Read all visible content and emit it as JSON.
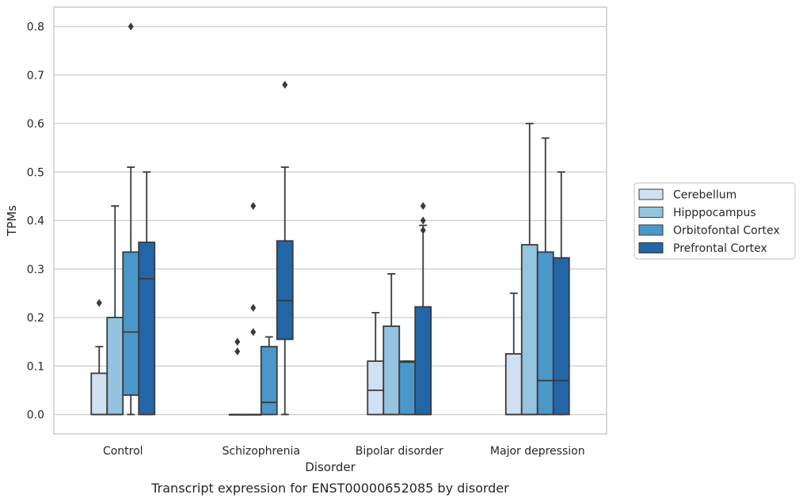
{
  "chart_data": {
    "type": "boxplot",
    "caption": "Transcript expression for ENST00000652085 by disorder",
    "xlabel": "Disorder",
    "ylabel": "TPMs",
    "ylim": [
      -0.04,
      0.84
    ],
    "yticks": [
      "0.0",
      "0.1",
      "0.2",
      "0.3",
      "0.4",
      "0.5",
      "0.6",
      "0.7",
      "0.8"
    ],
    "ytick_values": [
      0,
      0.1,
      0.2,
      0.3,
      0.4,
      0.5,
      0.6,
      0.7,
      0.8
    ],
    "grid": "horizontal",
    "legend_position": "right",
    "categories": [
      "Control",
      "Schizophrenia",
      "Bipolar disorder",
      "Major depression"
    ],
    "series": [
      {
        "name": "Cerebellum",
        "color": "#d0e1f2",
        "boxes": [
          {
            "whisker_low": 0,
            "q1": 0,
            "median": 0,
            "q3": 0.085,
            "whisker_high": 0.14,
            "outliers": [
              0.23
            ]
          },
          {
            "whisker_low": 0,
            "q1": 0,
            "median": 0,
            "q3": 0,
            "whisker_high": 0,
            "outliers": [
              0.13,
              0.15
            ]
          },
          {
            "whisker_low": 0,
            "q1": 0,
            "median": 0.05,
            "q3": 0.11,
            "whisker_high": 0.21,
            "outliers": []
          },
          {
            "whisker_low": 0,
            "q1": 0,
            "median": 0,
            "q3": 0.125,
            "whisker_high": 0.25,
            "outliers": []
          }
        ]
      },
      {
        "name": "Hipppocampus",
        "color": "#94c4df",
        "boxes": [
          {
            "whisker_low": 0,
            "q1": 0,
            "median": 0,
            "q3": 0.2,
            "whisker_high": 0.43,
            "outliers": []
          },
          {
            "whisker_low": 0,
            "q1": 0,
            "median": 0,
            "q3": 0,
            "whisker_high": 0,
            "outliers": [
              0.17,
              0.22,
              0.43
            ]
          },
          {
            "whisker_low": 0,
            "q1": 0,
            "median": 0,
            "q3": 0.182,
            "whisker_high": 0.29,
            "outliers": []
          },
          {
            "whisker_low": 0,
            "q1": 0,
            "median": 0,
            "q3": 0.35,
            "whisker_high": 0.6,
            "outliers": []
          }
        ]
      },
      {
        "name": "Orbitofontal Cortex",
        "color": "#4a98c9",
        "boxes": [
          {
            "whisker_low": 0,
            "q1": 0.04,
            "median": 0.17,
            "q3": 0.335,
            "whisker_high": 0.51,
            "outliers": [
              0.8
            ]
          },
          {
            "whisker_low": 0,
            "q1": 0,
            "median": 0.025,
            "q3": 0.14,
            "whisker_high": 0.16,
            "outliers": []
          },
          {
            "whisker_low": 0,
            "q1": 0,
            "median": 0.108,
            "q3": 0.11,
            "whisker_high": 0.11,
            "outliers": []
          },
          {
            "whisker_low": 0,
            "q1": 0,
            "median": 0.07,
            "q3": 0.335,
            "whisker_high": 0.57,
            "outliers": []
          }
        ]
      },
      {
        "name": "Prefrontal Cortex",
        "color": "#2366a8",
        "boxes": [
          {
            "whisker_low": 0,
            "q1": 0,
            "median": 0.28,
            "q3": 0.355,
            "whisker_high": 0.5,
            "outliers": []
          },
          {
            "whisker_low": 0,
            "q1": 0.155,
            "median": 0.235,
            "q3": 0.358,
            "whisker_high": 0.51,
            "outliers": [
              0.68
            ]
          },
          {
            "whisker_low": 0,
            "q1": 0,
            "median": 0,
            "q3": 0.222,
            "whisker_high": 0.39,
            "outliers": [
              0.38,
              0.4,
              0.43
            ]
          },
          {
            "whisker_low": 0,
            "q1": 0,
            "median": 0.07,
            "q3": 0.323,
            "whisker_high": 0.5,
            "outliers": []
          }
        ]
      }
    ]
  }
}
